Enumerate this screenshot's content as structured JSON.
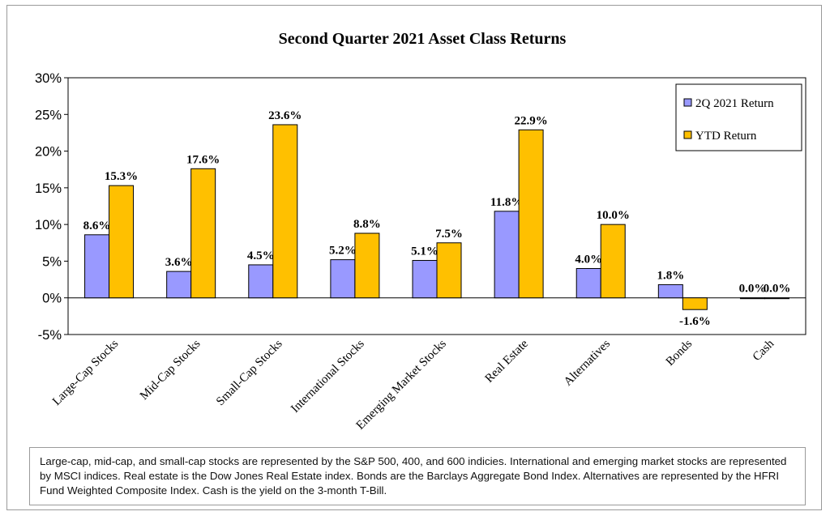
{
  "chart_data": {
    "type": "bar",
    "title": "Second Quarter 2021 Asset Class Returns",
    "categories": [
      "Large-Cap Stocks",
      "Mid-Cap Stocks",
      "Small-Cap Stocks",
      "International Stocks",
      "Emerging Market Stocks",
      "Real Estate",
      "Alternatives",
      "Bonds",
      "Cash"
    ],
    "series": [
      {
        "name": "2Q 2021 Return",
        "color": "#9999ff",
        "values": [
          8.6,
          3.6,
          4.5,
          5.2,
          5.1,
          11.8,
          4.0,
          1.8,
          0.0
        ],
        "labels": [
          "8.6%",
          "3.6%",
          "4.5%",
          "5.2%",
          "5.1%",
          "11.8%",
          "4.0%",
          "1.8%",
          "0.0%"
        ]
      },
      {
        "name": "YTD Return",
        "color": "#ffc000",
        "values": [
          15.3,
          17.6,
          23.6,
          8.8,
          7.5,
          22.9,
          10.0,
          -1.6,
          0.0
        ],
        "labels": [
          "15.3%",
          "17.6%",
          "23.6%",
          "8.8%",
          "7.5%",
          "22.9%",
          "10.0%",
          "-1.6%",
          "0.0%"
        ]
      }
    ],
    "ylim": [
      -5,
      30
    ],
    "yticks": [
      30,
      25,
      20,
      15,
      10,
      5,
      0,
      -5
    ],
    "ytick_labels": [
      "30%",
      "25%",
      "20%",
      "15%",
      "10%",
      "5%",
      "0%",
      "-5%"
    ],
    "grid": false,
    "legend_position": "top-right"
  },
  "footnote": "Large-cap, mid-cap, and small-cap stocks are represented by the S&P 500, 400, and 600 indicies.  International and emerging market stocks are represented by MSCI indices.  Real estate is the Dow Jones Real Estate index.  Bonds are the Barclays Aggregate Bond Index.  Alternatives are represented by the HFRI Fund Weighted Composite Index.  Cash is the yield on the 3-month T-Bill."
}
